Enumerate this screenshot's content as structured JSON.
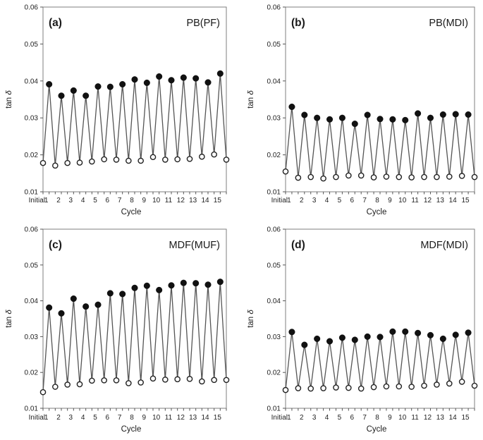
{
  "figure": {
    "layout": "2x2 grid of line charts",
    "background": "#ffffff",
    "colors": {
      "frame": "#7f7f7f",
      "line": "#555555",
      "tick": "#555555",
      "marker_filled": "#111111",
      "marker_open_fill": "#ffffff",
      "marker_open_stroke": "#222222",
      "text": "#1a1a1a"
    }
  },
  "chart_data": [
    {
      "type": "line",
      "panel_label": "(a)",
      "title": "PB(PF)",
      "xlabel": "Cycle",
      "ylabel": "tan δ",
      "ylim": [
        0.01,
        0.06
      ],
      "ytick_labels": [
        "0.01",
        "0.02",
        "0.03",
        "0.04",
        "0.05",
        "0.06"
      ],
      "xtick_labels": [
        "Initial",
        "1",
        "2",
        "3",
        "4",
        "5",
        "6",
        "7",
        "8",
        "9",
        "10",
        "11",
        "12",
        "13",
        "14",
        "15"
      ],
      "grid": false,
      "legend": "none",
      "point_order": "initial(open), then for each cycle: filled peak then open low, evenly spaced",
      "series": [
        {
          "name": "filled-circles-high",
          "marker": "filled-circle",
          "x": [
            "1",
            "2",
            "3",
            "4",
            "5",
            "6",
            "7",
            "8",
            "9",
            "10",
            "11",
            "12",
            "13",
            "14",
            "15"
          ],
          "values": [
            0.0391,
            0.036,
            0.0374,
            0.036,
            0.0385,
            0.0384,
            0.0391,
            0.0404,
            0.0395,
            0.0412,
            0.0402,
            0.0409,
            0.0407,
            0.0396,
            0.042
          ]
        },
        {
          "name": "open-circles-low",
          "marker": "open-circle",
          "x": [
            "Initial",
            "1",
            "2",
            "3",
            "4",
            "5",
            "6",
            "7",
            "8",
            "9",
            "10",
            "11",
            "12",
            "13",
            "14",
            "15"
          ],
          "values": [
            0.0178,
            0.0171,
            0.0178,
            0.0179,
            0.0182,
            0.0188,
            0.0187,
            0.0184,
            0.0184,
            0.0194,
            0.0187,
            0.0188,
            0.0189,
            0.0195,
            0.0201,
            0.0187
          ]
        }
      ]
    },
    {
      "type": "line",
      "panel_label": "(b)",
      "title": "PB(MDI)",
      "xlabel": "Cycle",
      "ylabel": "tan δ",
      "ylim": [
        0.01,
        0.06
      ],
      "ytick_labels": [
        "0.01",
        "0.02",
        "0.03",
        "0.04",
        "0.05",
        "0.06"
      ],
      "xtick_labels": [
        "Initial",
        "1",
        "2",
        "3",
        "4",
        "5",
        "6",
        "7",
        "8",
        "9",
        "10",
        "11",
        "12",
        "13",
        "14",
        "15"
      ],
      "grid": false,
      "legend": "none",
      "point_order": "initial(open), then for each cycle: filled peak then open low, evenly spaced",
      "series": [
        {
          "name": "filled-circles-high",
          "marker": "filled-circle",
          "x": [
            "1",
            "2",
            "3",
            "4",
            "5",
            "6",
            "7",
            "8",
            "9",
            "10",
            "11",
            "12",
            "13",
            "14",
            "15"
          ],
          "values": [
            0.033,
            0.0308,
            0.03,
            0.0296,
            0.03,
            0.0284,
            0.0308,
            0.0297,
            0.0296,
            0.0294,
            0.0312,
            0.03,
            0.0309,
            0.031,
            0.0309
          ]
        },
        {
          "name": "open-circles-low",
          "marker": "open-circle",
          "x": [
            "Initial",
            "1",
            "2",
            "3",
            "4",
            "5",
            "6",
            "7",
            "8",
            "9",
            "10",
            "11",
            "12",
            "13",
            "14",
            "15"
          ],
          "values": [
            0.0155,
            0.0138,
            0.014,
            0.0136,
            0.014,
            0.0144,
            0.0144,
            0.0139,
            0.0141,
            0.014,
            0.0139,
            0.014,
            0.014,
            0.0141,
            0.0143,
            0.014
          ]
        }
      ]
    },
    {
      "type": "line",
      "panel_label": "(c)",
      "title": "MDF(MUF)",
      "xlabel": "Cycle",
      "ylabel": "tan δ",
      "ylim": [
        0.01,
        0.06
      ],
      "ytick_labels": [
        "0.01",
        "0.02",
        "0.03",
        "0.04",
        "0.05",
        "0.06"
      ],
      "xtick_labels": [
        "Initial",
        "1",
        "2",
        "3",
        "4",
        "5",
        "6",
        "7",
        "8",
        "9",
        "10",
        "11",
        "12",
        "13",
        "14",
        "15"
      ],
      "grid": false,
      "legend": "none",
      "point_order": "initial(open), then for each cycle: filled peak then open low, evenly spaced",
      "series": [
        {
          "name": "filled-circles-high",
          "marker": "filled-circle",
          "x": [
            "1",
            "2",
            "3",
            "4",
            "5",
            "6",
            "7",
            "8",
            "9",
            "10",
            "11",
            "12",
            "13",
            "14",
            "15"
          ],
          "values": [
            0.0381,
            0.0365,
            0.0406,
            0.0384,
            0.0389,
            0.0421,
            0.0419,
            0.0436,
            0.0442,
            0.043,
            0.0443,
            0.045,
            0.0449,
            0.0445,
            0.0453
          ]
        },
        {
          "name": "open-circles-low",
          "marker": "open-circle",
          "x": [
            "Initial",
            "1",
            "2",
            "3",
            "4",
            "5",
            "6",
            "7",
            "8",
            "9",
            "10",
            "11",
            "12",
            "13",
            "14",
            "15"
          ],
          "values": [
            0.0145,
            0.016,
            0.0166,
            0.0167,
            0.0177,
            0.0178,
            0.0178,
            0.017,
            0.0172,
            0.0183,
            0.018,
            0.0181,
            0.0182,
            0.0175,
            0.0179,
            0.0179
          ]
        }
      ]
    },
    {
      "type": "line",
      "panel_label": "(d)",
      "title": "MDF(MDI)",
      "xlabel": "Cycle",
      "ylabel": "tan δ",
      "ylim": [
        0.01,
        0.06
      ],
      "ytick_labels": [
        "0.01",
        "0.02",
        "0.03",
        "0.04",
        "0.05",
        "0.06"
      ],
      "xtick_labels": [
        "Initial",
        "1",
        "2",
        "3",
        "4",
        "5",
        "6",
        "7",
        "8",
        "9",
        "10",
        "11",
        "12",
        "13",
        "14",
        "15"
      ],
      "grid": false,
      "legend": "none",
      "point_order": "initial(open), then for each cycle: filled peak then open low, evenly spaced",
      "series": [
        {
          "name": "filled-circles-high",
          "marker": "filled-circle",
          "x": [
            "1",
            "2",
            "3",
            "4",
            "5",
            "6",
            "7",
            "8",
            "9",
            "10",
            "11",
            "12",
            "13",
            "14",
            "15"
          ],
          "values": [
            0.0313,
            0.0277,
            0.0294,
            0.0287,
            0.0297,
            0.0291,
            0.03,
            0.0299,
            0.0314,
            0.0314,
            0.031,
            0.0304,
            0.0294,
            0.0305,
            0.0311
          ]
        },
        {
          "name": "open-circles-low",
          "marker": "open-circle",
          "x": [
            "Initial",
            "1",
            "2",
            "3",
            "4",
            "5",
            "6",
            "7",
            "8",
            "9",
            "10",
            "11",
            "12",
            "13",
            "14",
            "15"
          ],
          "values": [
            0.0151,
            0.0156,
            0.0155,
            0.0156,
            0.0158,
            0.0157,
            0.0155,
            0.0159,
            0.0161,
            0.0161,
            0.016,
            0.0163,
            0.0166,
            0.0169,
            0.0174,
            0.0163
          ]
        }
      ]
    }
  ]
}
